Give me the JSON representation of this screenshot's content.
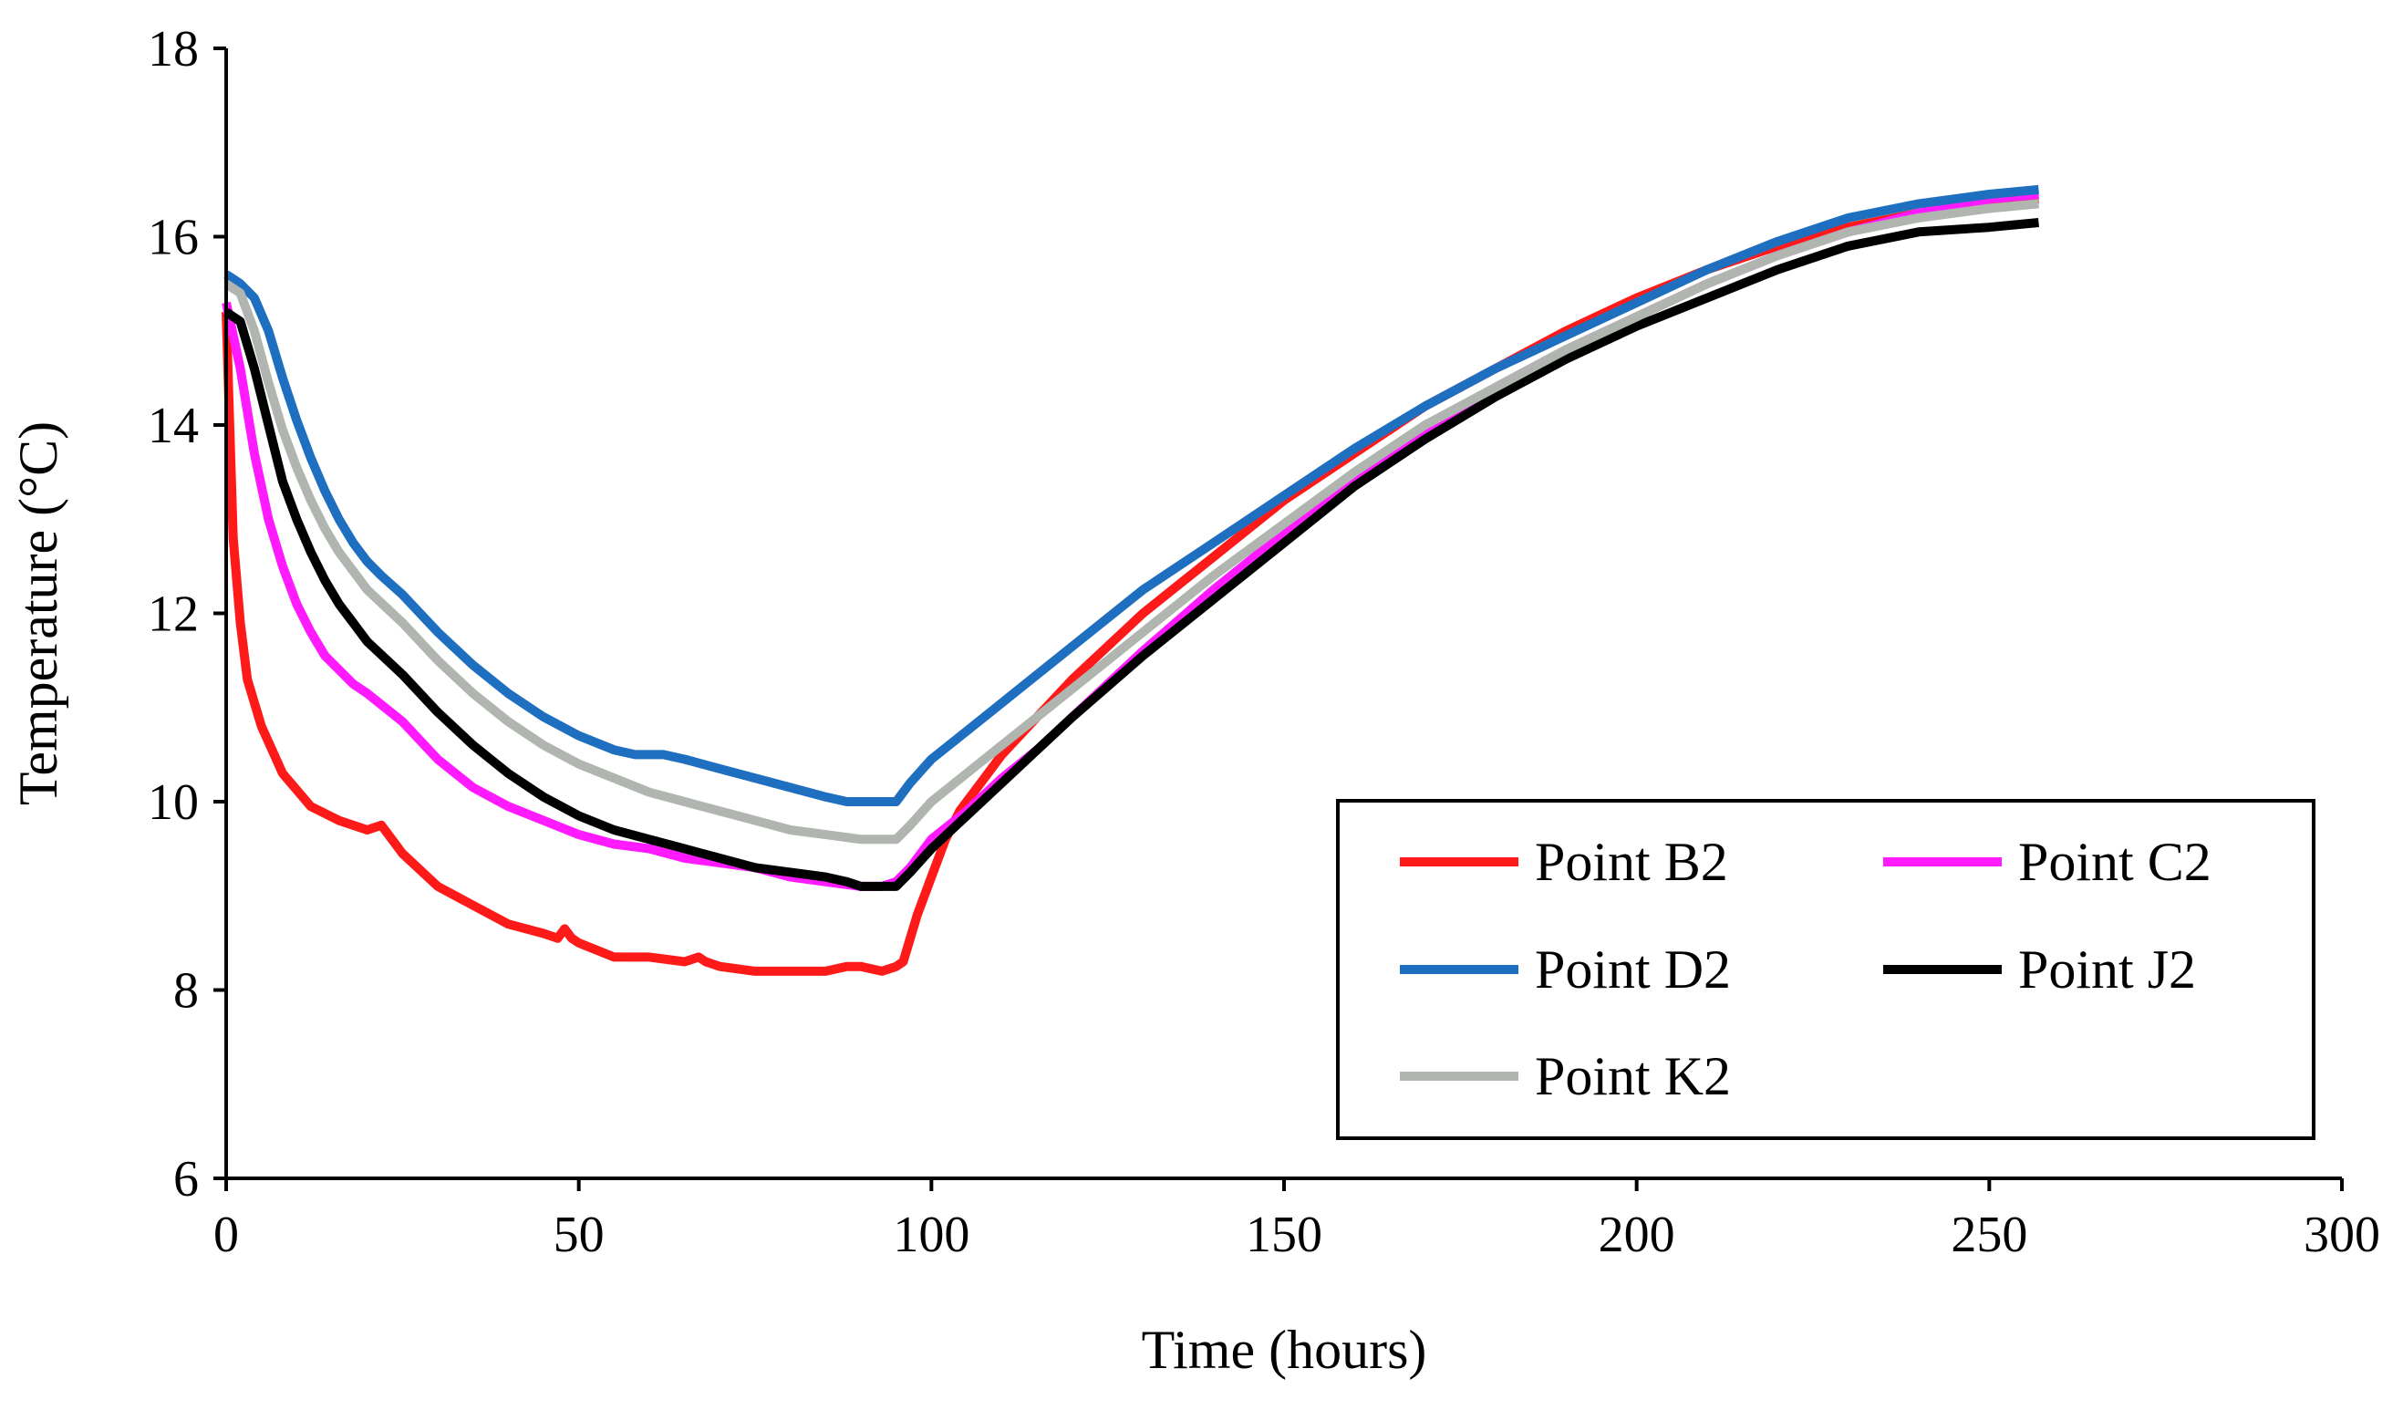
{
  "chart_data": {
    "type": "line",
    "title": "",
    "xlabel": "Time (hours)",
    "ylabel": "Temperature (°C)",
    "xlim": [
      0,
      300
    ],
    "ylim": [
      6,
      18
    ],
    "xticks": [
      0,
      50,
      100,
      150,
      200,
      250,
      300
    ],
    "yticks": [
      6,
      8,
      10,
      12,
      14,
      16,
      18
    ],
    "grid": false,
    "legend_position": "bottom-right",
    "series": [
      {
        "name": "Point B2",
        "color": "#ff1a1a",
        "x": [
          0,
          1,
          2,
          3,
          5,
          8,
          12,
          16,
          20,
          22,
          23,
          25,
          30,
          35,
          40,
          45,
          47,
          48,
          49,
          50,
          55,
          60,
          65,
          67,
          68,
          70,
          75,
          80,
          85,
          88,
          90,
          93,
          95,
          96,
          98,
          100,
          102,
          104,
          107,
          110,
          115,
          120,
          130,
          140,
          150,
          160,
          170,
          180,
          190,
          200,
          210,
          220,
          230,
          240,
          250,
          257
        ],
        "y": [
          15.2,
          12.8,
          11.9,
          11.3,
          10.8,
          10.3,
          9.95,
          9.8,
          9.7,
          9.75,
          9.65,
          9.45,
          9.1,
          8.9,
          8.7,
          8.6,
          8.55,
          8.65,
          8.55,
          8.5,
          8.35,
          8.35,
          8.3,
          8.35,
          8.3,
          8.25,
          8.2,
          8.2,
          8.2,
          8.25,
          8.25,
          8.2,
          8.25,
          8.3,
          8.8,
          9.2,
          9.6,
          9.9,
          10.2,
          10.5,
          10.9,
          11.3,
          12.0,
          12.6,
          13.2,
          13.7,
          14.2,
          14.6,
          15.0,
          15.35,
          15.65,
          15.9,
          16.1,
          16.25,
          16.35,
          16.4
        ]
      },
      {
        "name": "Point C2",
        "color": "#ff1aff",
        "x": [
          0,
          2,
          4,
          6,
          8,
          10,
          12,
          14,
          16,
          18,
          20,
          25,
          30,
          35,
          40,
          45,
          50,
          55,
          60,
          65,
          70,
          75,
          80,
          85,
          90,
          93,
          95,
          97,
          100,
          105,
          110,
          115,
          120,
          130,
          140,
          150,
          160,
          170,
          180,
          190,
          200,
          210,
          220,
          230,
          240,
          250,
          257
        ],
        "y": [
          15.3,
          14.6,
          13.7,
          13.0,
          12.5,
          12.1,
          11.8,
          11.55,
          11.4,
          11.25,
          11.15,
          10.85,
          10.45,
          10.15,
          9.95,
          9.8,
          9.65,
          9.55,
          9.5,
          9.4,
          9.35,
          9.3,
          9.2,
          9.15,
          9.1,
          9.1,
          9.15,
          9.3,
          9.6,
          9.9,
          10.25,
          10.55,
          10.9,
          11.6,
          12.25,
          12.85,
          13.45,
          13.95,
          14.4,
          14.8,
          15.15,
          15.5,
          15.8,
          16.05,
          16.25,
          16.4,
          16.45
        ]
      },
      {
        "name": "Point D2",
        "color": "#1f6fc0",
        "x": [
          0,
          2,
          4,
          6,
          8,
          10,
          12,
          14,
          16,
          18,
          20,
          22,
          25,
          30,
          35,
          40,
          45,
          50,
          55,
          58,
          62,
          65,
          70,
          75,
          80,
          85,
          88,
          90,
          93,
          95,
          97,
          100,
          105,
          110,
          115,
          120,
          130,
          140,
          150,
          160,
          170,
          180,
          190,
          200,
          210,
          220,
          230,
          240,
          250,
          257
        ],
        "y": [
          15.6,
          15.5,
          15.35,
          15.0,
          14.5,
          14.05,
          13.65,
          13.3,
          13.0,
          12.75,
          12.55,
          12.4,
          12.2,
          11.8,
          11.45,
          11.15,
          10.9,
          10.7,
          10.55,
          10.5,
          10.5,
          10.45,
          10.35,
          10.25,
          10.15,
          10.05,
          10.0,
          10.0,
          10.0,
          10.0,
          10.2,
          10.45,
          10.75,
          11.05,
          11.35,
          11.65,
          12.25,
          12.75,
          13.25,
          13.75,
          14.2,
          14.6,
          14.95,
          15.3,
          15.65,
          15.95,
          16.2,
          16.35,
          16.45,
          16.5
        ]
      },
      {
        "name": "Point J2",
        "color": "#000000",
        "x": [
          0,
          2,
          4,
          6,
          8,
          10,
          12,
          14,
          16,
          18,
          20,
          25,
          30,
          35,
          40,
          45,
          50,
          55,
          60,
          65,
          70,
          75,
          80,
          85,
          88,
          90,
          93,
          95,
          97,
          100,
          105,
          110,
          115,
          120,
          130,
          140,
          150,
          160,
          170,
          180,
          190,
          200,
          210,
          220,
          230,
          240,
          250,
          257
        ],
        "y": [
          15.2,
          15.1,
          14.6,
          14.0,
          13.4,
          13.0,
          12.65,
          12.35,
          12.1,
          11.9,
          11.7,
          11.35,
          10.95,
          10.6,
          10.3,
          10.05,
          9.85,
          9.7,
          9.6,
          9.5,
          9.4,
          9.3,
          9.25,
          9.2,
          9.15,
          9.1,
          9.1,
          9.1,
          9.25,
          9.5,
          9.85,
          10.2,
          10.55,
          10.9,
          11.55,
          12.15,
          12.75,
          13.35,
          13.85,
          14.3,
          14.7,
          15.05,
          15.35,
          15.65,
          15.9,
          16.05,
          16.1,
          16.15
        ]
      },
      {
        "name": "Point K2",
        "color": "#b0b5b0",
        "x": [
          0,
          2,
          4,
          6,
          8,
          10,
          12,
          14,
          16,
          18,
          20,
          25,
          30,
          35,
          40,
          45,
          50,
          55,
          60,
          65,
          70,
          75,
          80,
          85,
          90,
          93,
          95,
          97,
          100,
          105,
          110,
          115,
          120,
          130,
          140,
          150,
          160,
          170,
          180,
          190,
          200,
          210,
          220,
          230,
          240,
          250,
          257
        ],
        "y": [
          15.5,
          15.4,
          15.0,
          14.45,
          13.95,
          13.55,
          13.2,
          12.9,
          12.65,
          12.45,
          12.25,
          11.9,
          11.5,
          11.15,
          10.85,
          10.6,
          10.4,
          10.25,
          10.1,
          10.0,
          9.9,
          9.8,
          9.7,
          9.65,
          9.6,
          9.6,
          9.6,
          9.75,
          10.0,
          10.3,
          10.6,
          10.9,
          11.2,
          11.8,
          12.4,
          12.95,
          13.5,
          14.0,
          14.4,
          14.8,
          15.15,
          15.5,
          15.8,
          16.05,
          16.2,
          16.3,
          16.35
        ]
      }
    ]
  }
}
